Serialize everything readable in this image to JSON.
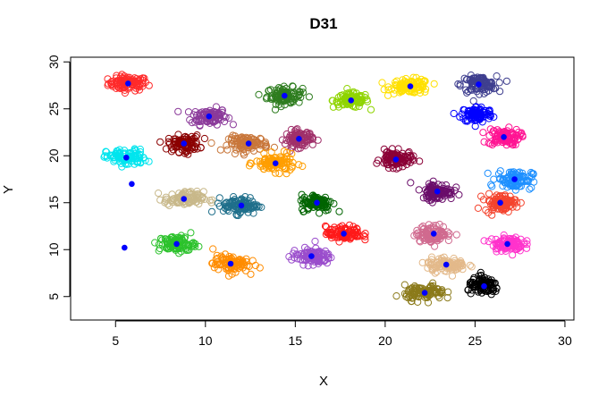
{
  "chart_data": {
    "type": "scatter",
    "title": "D31",
    "xlabel": "X",
    "ylabel": "Y",
    "xlim": [
      2.5,
      30.5
    ],
    "ylim": [
      2.5,
      30.5
    ],
    "xticks": [
      5,
      10,
      15,
      20,
      25,
      30
    ],
    "yticks": [
      5,
      10,
      15,
      20,
      25,
      30
    ],
    "marker": "open-circle",
    "centroid_marker": "filled-blue-dot",
    "centroid_color": "#0000FF",
    "points_per_cluster": 100,
    "clusters": [
      {
        "center": [
          5.7,
          27.7
        ],
        "spread": [
          1.0,
          0.7
        ],
        "color": "#FF2A2A"
      },
      {
        "center": [
          10.2,
          24.2
        ],
        "spread": [
          0.9,
          0.8
        ],
        "color": "#8B3A9A"
      },
      {
        "center": [
          14.4,
          26.4
        ],
        "spread": [
          0.9,
          0.8
        ],
        "color": "#2E7D1F"
      },
      {
        "center": [
          18.1,
          25.9
        ],
        "spread": [
          0.9,
          0.7
        ],
        "color": "#8FD400"
      },
      {
        "center": [
          21.4,
          27.4
        ],
        "spread": [
          1.0,
          0.7
        ],
        "color": "#FFE000"
      },
      {
        "center": [
          25.2,
          27.6
        ],
        "spread": [
          0.9,
          0.8
        ],
        "color": "#3F3F8F"
      },
      {
        "center": [
          25.1,
          24.4
        ],
        "spread": [
          0.8,
          0.8
        ],
        "color": "#0000FF"
      },
      {
        "center": [
          26.6,
          22.0
        ],
        "spread": [
          0.8,
          0.8
        ],
        "color": "#FF1493"
      },
      {
        "center": [
          5.6,
          19.8
        ],
        "spread": [
          1.0,
          0.8
        ],
        "color": "#00E5EE"
      },
      {
        "center": [
          8.8,
          21.3
        ],
        "spread": [
          0.8,
          0.8
        ],
        "color": "#8B0000"
      },
      {
        "center": [
          12.4,
          21.3
        ],
        "spread": [
          1.0,
          0.7
        ],
        "color": "#C8763A"
      },
      {
        "center": [
          15.2,
          21.8
        ],
        "spread": [
          0.7,
          0.8
        ],
        "color": "#A0306A"
      },
      {
        "center": [
          13.9,
          19.2
        ],
        "spread": [
          1.0,
          0.8
        ],
        "color": "#FF9E00"
      },
      {
        "center": [
          20.6,
          19.6
        ],
        "spread": [
          0.8,
          0.8
        ],
        "color": "#8B0036"
      },
      {
        "center": [
          27.2,
          17.5
        ],
        "spread": [
          0.9,
          0.9
        ],
        "color": "#1E90FF"
      },
      {
        "center": [
          8.8,
          15.4
        ],
        "spread": [
          1.0,
          0.7
        ],
        "color": "#C8B88A"
      },
      {
        "center": [
          12.0,
          14.7
        ],
        "spread": [
          0.9,
          0.8
        ],
        "color": "#1F6F8B"
      },
      {
        "center": [
          16.2,
          15.0
        ],
        "spread": [
          0.8,
          0.8
        ],
        "color": "#006400"
      },
      {
        "center": [
          22.9,
          16.2
        ],
        "spread": [
          0.8,
          0.8
        ],
        "color": "#6A0D6A"
      },
      {
        "center": [
          26.4,
          15.0
        ],
        "spread": [
          0.8,
          0.8
        ],
        "color": "#F4442E"
      },
      {
        "center": [
          8.4,
          10.6
        ],
        "spread": [
          0.9,
          0.8
        ],
        "color": "#2CC22C"
      },
      {
        "center": [
          11.4,
          8.5
        ],
        "spread": [
          0.9,
          0.8
        ],
        "color": "#FF8C00"
      },
      {
        "center": [
          15.9,
          9.3
        ],
        "spread": [
          1.0,
          0.8
        ],
        "color": "#9A4DCC"
      },
      {
        "center": [
          17.7,
          11.7
        ],
        "spread": [
          0.9,
          0.7
        ],
        "color": "#FF1A1A"
      },
      {
        "center": [
          22.7,
          11.7
        ],
        "spread": [
          0.9,
          0.8
        ],
        "color": "#D06A8F"
      },
      {
        "center": [
          26.8,
          10.6
        ],
        "spread": [
          0.8,
          0.7
        ],
        "color": "#FF33CC"
      },
      {
        "center": [
          23.4,
          8.4
        ],
        "spread": [
          1.0,
          0.7
        ],
        "color": "#E3B98A"
      },
      {
        "center": [
          22.2,
          5.4
        ],
        "spread": [
          1.0,
          0.7
        ],
        "color": "#8B7A1A"
      },
      {
        "center": [
          25.5,
          6.1
        ],
        "spread": [
          0.8,
          0.8
        ],
        "color": "#000000"
      },
      {
        "center": [
          5.9,
          17.0
        ],
        "spread": [
          0.0,
          0.0
        ],
        "color": "#0000FF",
        "note": ""
      },
      {
        "center": [
          5.5,
          10.2
        ],
        "spread": [
          0.0,
          0.0
        ],
        "color": "#0000FF",
        "note": ""
      }
    ]
  }
}
